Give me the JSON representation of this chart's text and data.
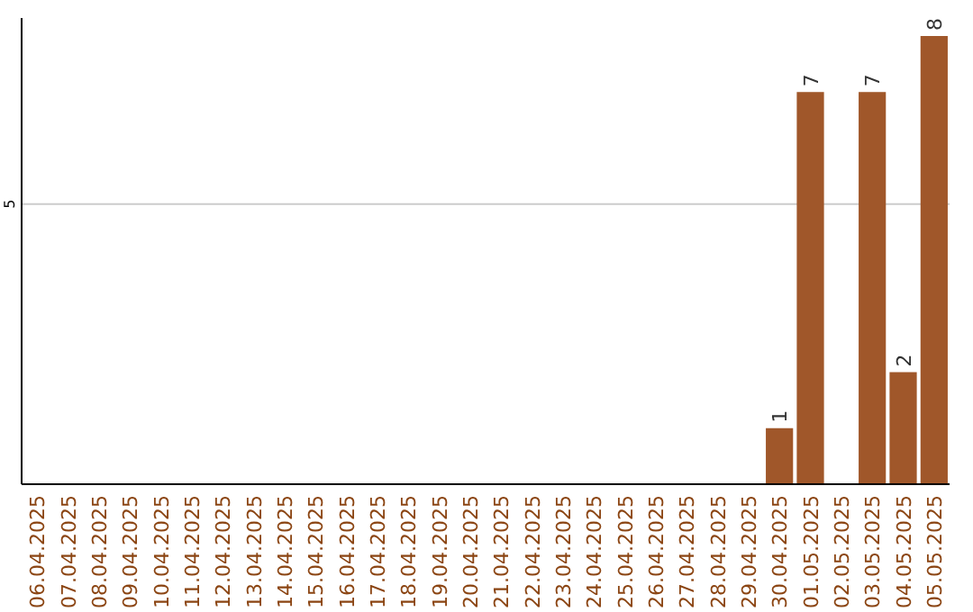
{
  "chart_data": {
    "type": "bar",
    "categories": [
      "06.04.2025",
      "07.04.2025",
      "08.04.2025",
      "09.04.2025",
      "10.04.2025",
      "11.04.2025",
      "12.04.2025",
      "13.04.2025",
      "14.04.2025",
      "15.04.2025",
      "16.04.2025",
      "17.04.2025",
      "18.04.2025",
      "19.04.2025",
      "20.04.2025",
      "21.04.2025",
      "22.04.2025",
      "23.04.2025",
      "24.04.2025",
      "25.04.2025",
      "26.04.2025",
      "27.04.2025",
      "28.04.2025",
      "29.04.2025",
      "30.04.2025",
      "01.05.2025",
      "02.05.2025",
      "03.05.2025",
      "04.05.2025",
      "05.05.2025"
    ],
    "values": [
      null,
      null,
      null,
      null,
      null,
      null,
      null,
      null,
      null,
      null,
      null,
      null,
      null,
      null,
      null,
      null,
      null,
      null,
      null,
      null,
      null,
      null,
      null,
      null,
      1,
      7,
      null,
      7,
      2,
      8
    ],
    "color": "#a0572a",
    "ylim": [
      0,
      8
    ],
    "yticks": [
      5
    ],
    "grid": "y",
    "data_labels": true
  }
}
